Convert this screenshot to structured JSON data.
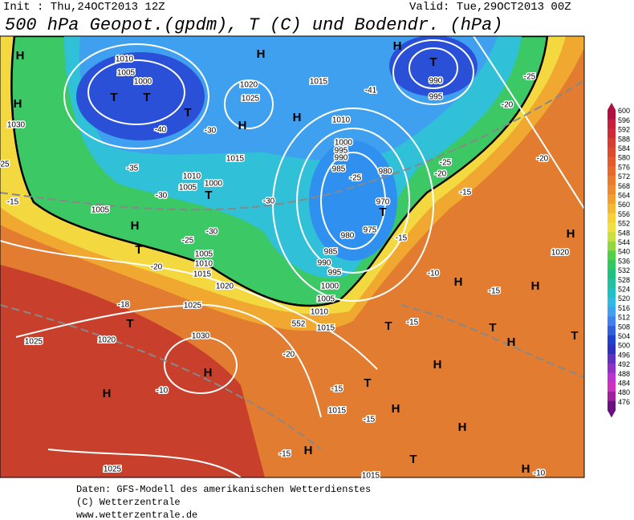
{
  "header": {
    "init": "Init : Thu,24OCT2013 12Z",
    "valid": "Valid: Tue,29OCT2013 00Z",
    "title": "500 hPa Geopot.(gpdm), T (C) und Bodendr. (hPa)"
  },
  "map_labels": [
    "H",
    "H",
    "H",
    "H",
    "T",
    "990",
    "995",
    "1010",
    "1005",
    "1000",
    "T",
    "T",
    "T",
    "1020",
    "1025",
    "H",
    "H",
    "1015",
    "1010",
    "1030",
    "-40",
    "-30",
    "1015",
    "1000",
    "995",
    "990",
    "985",
    "980",
    "970",
    "T",
    "975",
    "980",
    "1010",
    "1005",
    "1000",
    "T",
    "-35",
    "-30",
    "1005",
    "H",
    "T",
    "-25",
    "-30",
    "-30",
    "-25",
    "985",
    "990",
    "995",
    "1000",
    "1005",
    "1010",
    "1015",
    "-20",
    "1005",
    "1010",
    "1015",
    "1020",
    "-18",
    "1025",
    "T",
    "1020",
    "1030",
    "1025",
    "H",
    "H",
    "-10",
    "-20",
    "T",
    "-15",
    "-10",
    "H",
    "H",
    "-15",
    "H",
    "T",
    "-15",
    "1015",
    "-15",
    "H",
    "H",
    "1025",
    "-15",
    "H",
    "T",
    "1015",
    "H",
    "-10",
    "1020",
    "H",
    "T",
    "H",
    "T",
    "-25",
    "-20",
    "-20",
    "-25",
    "-20",
    "-15",
    "-41",
    "-15",
    "25",
    "-15",
    "552"
  ],
  "colorbar": {
    "labels": [
      600,
      596,
      592,
      588,
      584,
      580,
      576,
      572,
      568,
      564,
      560,
      556,
      552,
      548,
      544,
      540,
      536,
      532,
      528,
      524,
      520,
      516,
      512,
      508,
      504,
      500,
      496,
      492,
      488,
      484,
      480,
      476
    ],
    "colors": [
      "#b01040",
      "#c81e3c",
      "#d02a36",
      "#d83c30",
      "#e04a2c",
      "#e45a2a",
      "#e86a2a",
      "#ec7a2c",
      "#f08a2e",
      "#f4a030",
      "#f6b832",
      "#f8d038",
      "#f0e040",
      "#c8e040",
      "#90d840",
      "#50d048",
      "#30c860",
      "#20c080",
      "#20c0a0",
      "#20c0c8",
      "#30b8e8",
      "#40a0f0",
      "#4080f0",
      "#3060e0",
      "#2040d0",
      "#3030c0",
      "#6030c0",
      "#9030c8",
      "#c030d0",
      "#d030c0",
      "#a020a0",
      "#6a1080"
    ]
  },
  "footer": [
    "Daten: GFS-Modell des amerikanischen Wetterdienstes",
    "(C) Wetterzentrale",
    "www.wetterzentrale.de"
  ]
}
